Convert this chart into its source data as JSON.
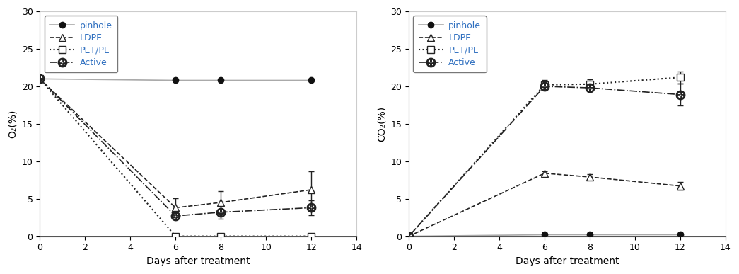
{
  "days": [
    0,
    6,
    8,
    12
  ],
  "o2": {
    "pinhole": {
      "y": [
        21.0,
        20.8,
        20.8,
        20.8
      ],
      "yerr": [
        0.0,
        0.0,
        0.0,
        0.0
      ]
    },
    "ldpe": {
      "y": [
        21.0,
        3.8,
        4.5,
        6.2
      ],
      "yerr": [
        0.0,
        1.3,
        1.5,
        2.5
      ]
    },
    "petpe": {
      "y": [
        21.0,
        0.0,
        0.0,
        0.0
      ],
      "yerr": [
        0.0,
        0.1,
        0.1,
        0.1
      ]
    },
    "active": {
      "y": [
        21.0,
        2.7,
        3.2,
        3.8
      ],
      "yerr": [
        0.0,
        0.4,
        0.9,
        1.0
      ]
    }
  },
  "co2": {
    "pinhole": {
      "y": [
        0.0,
        0.2,
        0.2,
        0.2
      ],
      "yerr": [
        0.0,
        0.05,
        0.05,
        0.05
      ]
    },
    "ldpe": {
      "y": [
        0.0,
        8.4,
        7.9,
        6.7
      ],
      "yerr": [
        0.0,
        0.3,
        0.4,
        0.5
      ]
    },
    "petpe": {
      "y": [
        0.0,
        20.2,
        20.3,
        21.2
      ],
      "yerr": [
        0.0,
        0.6,
        0.6,
        0.8
      ]
    },
    "active": {
      "y": [
        0.0,
        20.0,
        19.8,
        18.9
      ],
      "yerr": [
        0.0,
        0.5,
        0.5,
        1.5
      ]
    }
  },
  "legend_labels": [
    "pinhole",
    "LDPE",
    "PET/PE",
    "Active"
  ],
  "xlabel": "Days after treatment",
  "o2_ylabel": "O₂(%)",
  "co2_ylabel": "CO₂(%)",
  "ylim_o2": [
    0,
    30
  ],
  "ylim_co2": [
    0,
    30
  ],
  "xlim": [
    0,
    14
  ],
  "xticks": [
    0,
    2,
    4,
    6,
    8,
    10,
    12,
    14
  ],
  "yticks_o2": [
    0,
    5,
    10,
    15,
    20,
    25,
    30
  ],
  "yticks_co2": [
    0,
    5,
    10,
    15,
    20,
    25,
    30
  ],
  "pinhole_color": "#aaaaaa",
  "line_color": "#222222",
  "legend_text_color": "#3070c0",
  "bg_color": "#ffffff"
}
